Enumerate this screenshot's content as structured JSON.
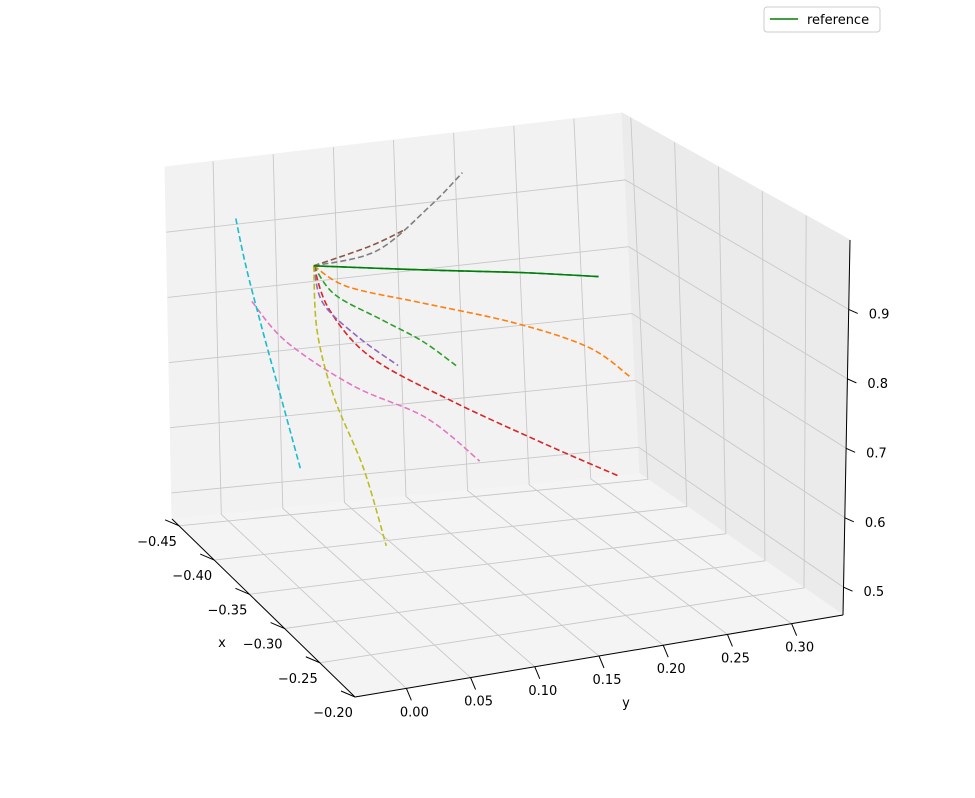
{
  "chart_data": {
    "type": "line",
    "title": "",
    "xlabel": "x",
    "ylabel": "y",
    "zlabel": "",
    "x_ticks": [
      "−0.45",
      "−0.40",
      "−0.35",
      "−0.30",
      "−0.25",
      "−0.20"
    ],
    "y_ticks": [
      "0.00",
      "0.05",
      "0.10",
      "0.15",
      "0.20",
      "0.25",
      "0.30"
    ],
    "z_ticks": [
      "0.5",
      "0.6",
      "0.7",
      "0.8",
      "0.9"
    ],
    "xlim": [
      -0.46,
      -0.2
    ],
    "ylim": [
      -0.04,
      0.34
    ],
    "zlim": [
      0.46,
      1.0
    ],
    "grid": true,
    "legend": {
      "position": "top-right",
      "entries": [
        "reference"
      ]
    },
    "colors": {
      "reference": "#008000",
      "series": [
        "#1f77b4",
        "#ff7f0e",
        "#2ca02c",
        "#d62728",
        "#9467bd",
        "#8c564b",
        "#e377c2",
        "#7f7f7f",
        "#bcbd22",
        "#17becf"
      ]
    },
    "series": [
      {
        "name": "reference",
        "style": "solid",
        "color": "#008000",
        "points": [
          [
            -0.4,
            0.045,
            0.87
          ],
          [
            -0.37,
            0.12,
            0.87
          ],
          [
            -0.35,
            0.18,
            0.87
          ],
          [
            -0.33,
            0.23,
            0.87
          ]
        ]
      },
      {
        "style": "dashed",
        "color": "#1f77b4",
        "points": [
          [
            -0.4,
            0.045,
            0.87
          ],
          [
            -0.37,
            0.12,
            0.87
          ],
          [
            -0.35,
            0.18,
            0.87
          ],
          [
            -0.33,
            0.23,
            0.87
          ]
        ]
      },
      {
        "style": "dashed",
        "color": "#ff7f0e",
        "points": [
          [
            -0.4,
            0.045,
            0.87
          ],
          [
            -0.38,
            0.06,
            0.85
          ],
          [
            -0.35,
            0.1,
            0.84
          ],
          [
            -0.31,
            0.15,
            0.83
          ],
          [
            -0.28,
            0.19,
            0.81
          ],
          [
            -0.26,
            0.21,
            0.78
          ]
        ]
      },
      {
        "style": "dashed",
        "color": "#2ca02c",
        "points": [
          [
            -0.4,
            0.045,
            0.87
          ],
          [
            -0.38,
            0.05,
            0.84
          ],
          [
            -0.35,
            0.07,
            0.82
          ],
          [
            -0.33,
            0.09,
            0.8
          ],
          [
            -0.32,
            0.11,
            0.77
          ]
        ]
      },
      {
        "style": "dashed",
        "color": "#d62728",
        "points": [
          [
            -0.4,
            0.045,
            0.87
          ],
          [
            -0.38,
            0.045,
            0.82
          ],
          [
            -0.35,
            0.06,
            0.77
          ],
          [
            -0.31,
            0.1,
            0.73
          ],
          [
            -0.27,
            0.15,
            0.69
          ],
          [
            -0.24,
            0.19,
            0.66
          ]
        ]
      },
      {
        "style": "dashed",
        "color": "#9467bd",
        "points": [
          [
            -0.4,
            0.045,
            0.87
          ],
          [
            -0.38,
            0.04,
            0.83
          ],
          [
            -0.35,
            0.05,
            0.8
          ],
          [
            -0.33,
            0.07,
            0.77
          ]
        ]
      },
      {
        "style": "dashed",
        "color": "#8c564b",
        "points": [
          [
            -0.4,
            0.045,
            0.87
          ],
          [
            -0.4,
            0.09,
            0.89
          ],
          [
            -0.4,
            0.12,
            0.91
          ]
        ]
      },
      {
        "style": "dashed",
        "color": "#e377c2",
        "points": [
          [
            -0.41,
            0.0,
            0.82
          ],
          [
            -0.38,
            0.01,
            0.78
          ],
          [
            -0.34,
            0.04,
            0.74
          ],
          [
            -0.31,
            0.08,
            0.71
          ],
          [
            -0.29,
            0.11,
            0.66
          ]
        ]
      },
      {
        "style": "dashed",
        "color": "#7f7f7f",
        "points": [
          [
            -0.4,
            0.045,
            0.87
          ],
          [
            -0.39,
            0.09,
            0.89
          ],
          [
            -0.4,
            0.14,
            0.94
          ],
          [
            -0.42,
            0.18,
            0.97
          ]
        ]
      },
      {
        "style": "dashed",
        "color": "#bcbd22",
        "points": [
          [
            -0.4,
            0.045,
            0.87
          ],
          [
            -0.38,
            0.035,
            0.79
          ],
          [
            -0.35,
            0.03,
            0.72
          ],
          [
            -0.31,
            0.03,
            0.65
          ],
          [
            -0.28,
            0.03,
            0.57
          ]
        ]
      },
      {
        "style": "dashed",
        "color": "#17becf",
        "points": [
          [
            -0.43,
            0.0,
            0.93
          ],
          [
            -0.4,
            -0.01,
            0.88
          ],
          [
            -0.37,
            -0.015,
            0.81
          ],
          [
            -0.33,
            -0.02,
            0.72
          ],
          [
            -0.31,
            -0.02,
            0.66
          ]
        ]
      }
    ]
  }
}
